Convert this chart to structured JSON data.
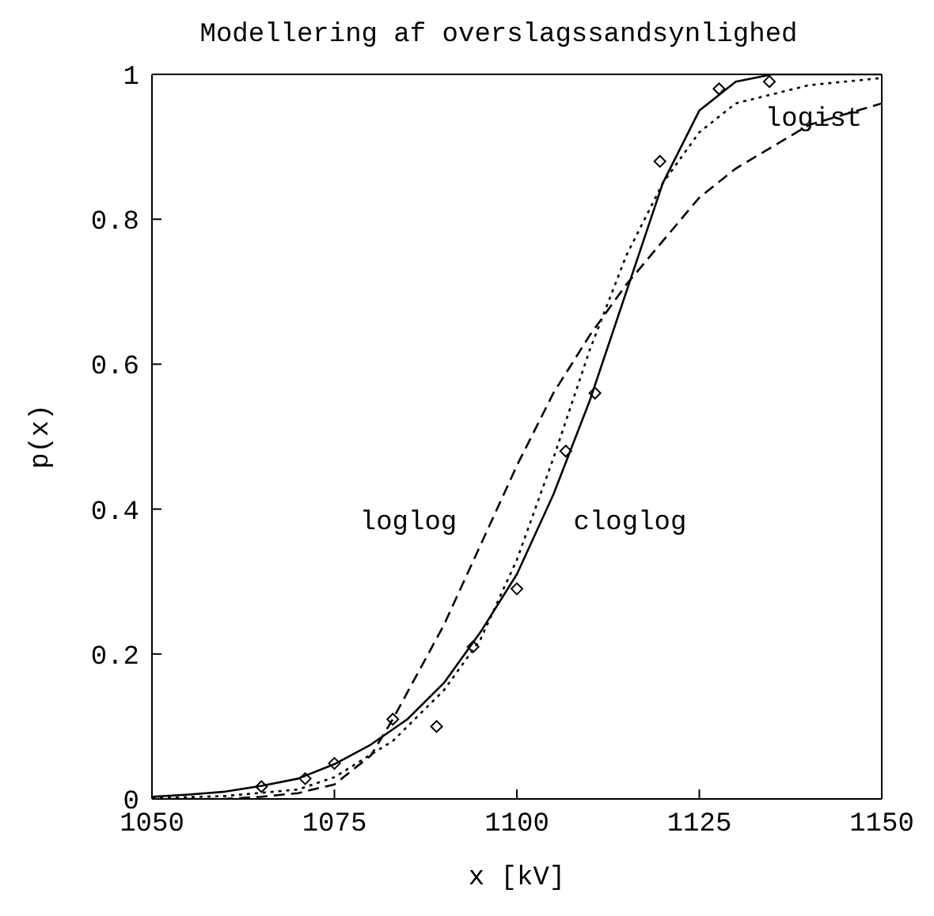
{
  "chart_data": {
    "type": "line",
    "title": "Modellering af overslagssandsynlighed",
    "xlabel": "x [kV]",
    "ylabel": "p(x)",
    "xlim": [
      1050,
      1150
    ],
    "xticks": [
      1050,
      1075,
      1100,
      1125,
      1150
    ],
    "ylim": [
      0,
      1
    ],
    "yticks": [
      0,
      0.2,
      0.4,
      0.6,
      0.8,
      1
    ],
    "series": [
      {
        "type": "scatter",
        "marker": "diamond",
        "color": "#000000",
        "x": [
          1065,
          1071,
          1075,
          1083,
          1089,
          1094,
          1100,
          1106.7,
          1110.7,
          1119.6,
          1127.7,
          1134.6
        ],
        "values": [
          0.017,
          0.028,
          0.049,
          0.11,
          0.1,
          0.21,
          0.29,
          0.48,
          0.56,
          0.88,
          0.98,
          0.99
        ]
      },
      {
        "line_style": "solid",
        "marker": "none",
        "color": "#000000",
        "x": [
          1050,
          1055,
          1060,
          1065,
          1070,
          1075,
          1080,
          1085,
          1090,
          1095,
          1100,
          1105,
          1110,
          1115,
          1120,
          1125,
          1130,
          1135,
          1150
        ],
        "values": [
          0.003,
          0.006,
          0.01,
          0.018,
          0.028,
          0.048,
          0.075,
          0.11,
          0.16,
          0.23,
          0.31,
          0.42,
          0.55,
          0.7,
          0.85,
          0.95,
          0.99,
          1,
          1
        ]
      },
      {
        "line_style": "dotted",
        "marker": "none",
        "color": "#000000",
        "x": [
          1050,
          1060,
          1070,
          1075,
          1083,
          1090,
          1095,
          1100,
          1105,
          1110,
          1115,
          1120,
          1125,
          1130,
          1140,
          1150
        ],
        "values": [
          0.001,
          0.004,
          0.013,
          0.03,
          0.08,
          0.15,
          0.22,
          0.33,
          0.47,
          0.62,
          0.75,
          0.85,
          0.92,
          0.96,
          0.985,
          0.995
        ]
      },
      {
        "line_style": "dashed",
        "marker": "none",
        "color": "#000000",
        "x": [
          1050,
          1060,
          1065,
          1070,
          1075,
          1080,
          1083,
          1090,
          1095,
          1100,
          1105,
          1110,
          1115,
          1120,
          1125,
          1130,
          1140,
          1150
        ],
        "values": [
          0,
          0,
          0.003,
          0.008,
          0.02,
          0.06,
          0.11,
          0.24,
          0.35,
          0.46,
          0.56,
          0.64,
          0.71,
          0.77,
          0.83,
          0.87,
          0.93,
          0.96
        ]
      }
    ],
    "annotations": [
      "loglog",
      "cloglog",
      "logist"
    ]
  }
}
